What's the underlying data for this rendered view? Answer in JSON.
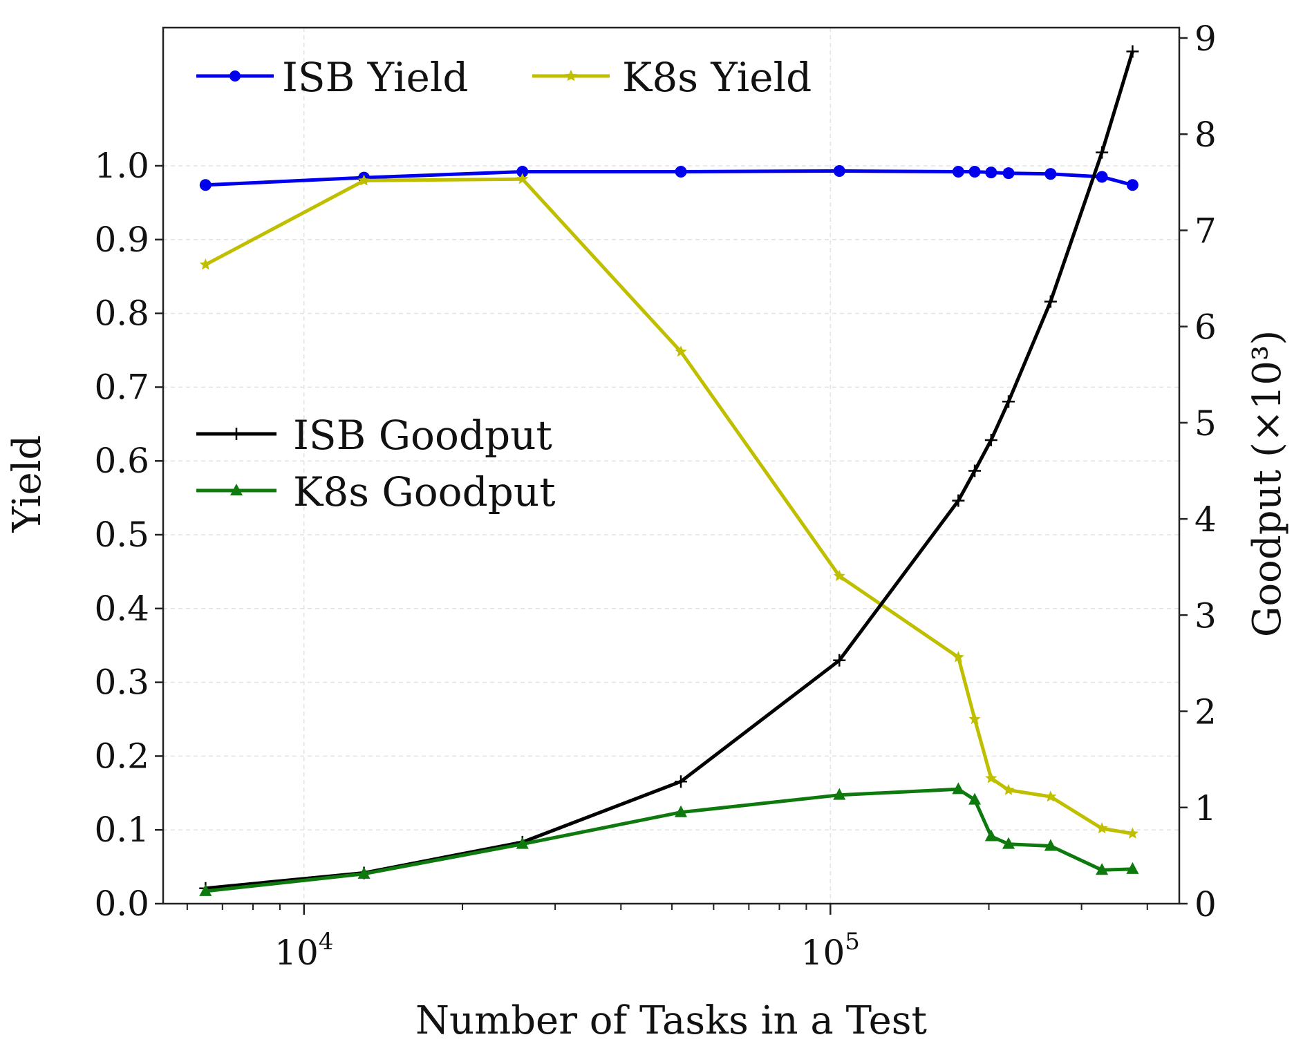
{
  "chart_data": {
    "type": "line",
    "xlabel": "Number of Tasks in a Test",
    "xscale": "log",
    "xlim": [
      5400,
      460000
    ],
    "x_ticks": [
      {
        "value": 10000,
        "base": "10",
        "exp": "4"
      },
      {
        "value": 100000,
        "base": "10",
        "exp": "5"
      }
    ],
    "ylabel_left": "Yield",
    "ylim_left": [
      0,
      1.2
    ],
    "y_ticks_left": [
      "0.0",
      "0.1",
      "0.2",
      "0.3",
      "0.4",
      "0.5",
      "0.6",
      "0.7",
      "0.8",
      "0.9",
      "1.0"
    ],
    "ylabel_right": "Goodput (×10³)",
    "ylim_right": [
      0,
      9
    ],
    "y_ticks_right": [
      "0",
      "1",
      "2",
      "3",
      "4",
      "5",
      "6",
      "7",
      "8",
      "9"
    ],
    "grid": true,
    "legend_top": "top-left",
    "legend_middle": "center-left",
    "series": [
      {
        "name": "ISB Yield",
        "axis": "left",
        "color": "#0000ee",
        "marker": "circle",
        "x": [
          6500,
          13000,
          26000,
          52000,
          104000,
          175000,
          188000,
          202000,
          218000,
          262000,
          328000,
          375000
        ],
        "y": [
          0.974,
          0.984,
          0.992,
          0.992,
          0.993,
          0.992,
          0.992,
          0.991,
          0.99,
          0.989,
          0.985,
          0.974
        ]
      },
      {
        "name": "K8s Yield",
        "axis": "left",
        "color": "#bfbf00",
        "marker": "star",
        "x": [
          6500,
          13000,
          26000,
          52000,
          104000,
          175000,
          188000,
          202000,
          218000,
          262000,
          328000,
          375000
        ],
        "y": [
          0.866,
          0.98,
          0.982,
          0.748,
          0.444,
          0.334,
          0.25,
          0.17,
          0.154,
          0.145,
          0.102,
          0.095
        ]
      },
      {
        "name": "ISB Goodput",
        "axis": "right",
        "color": "#000000",
        "marker": "plus",
        "x": [
          6500,
          13000,
          26000,
          52000,
          104000,
          175000,
          188000,
          202000,
          218000,
          262000,
          328000,
          375000
        ],
        "y": [
          0.16,
          0.32,
          0.64,
          1.27,
          2.53,
          4.19,
          4.5,
          4.82,
          5.22,
          6.26,
          7.81,
          8.86
        ]
      },
      {
        "name": "K8s Goodput",
        "axis": "right",
        "color": "#0e7a0e",
        "marker": "triangle",
        "x": [
          6500,
          13000,
          26000,
          52000,
          104000,
          175000,
          188000,
          202000,
          218000,
          262000,
          328000,
          375000
        ],
        "y": [
          0.13,
          0.31,
          0.62,
          0.95,
          1.13,
          1.19,
          1.08,
          0.7,
          0.62,
          0.6,
          0.35,
          0.36
        ]
      }
    ]
  }
}
